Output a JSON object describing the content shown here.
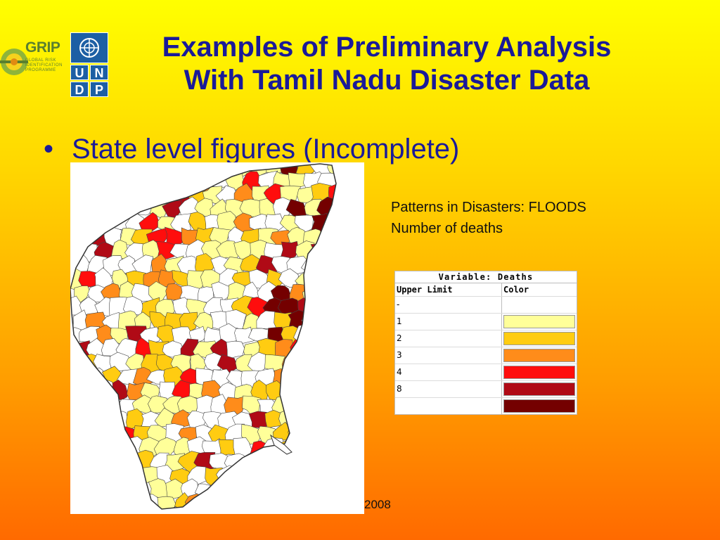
{
  "slide": {
    "title_line1": "Examples of Preliminary Analysis",
    "title_line2": "With Tamil Nadu Disaster Data",
    "bullet": "State level figures (Incomplete)",
    "bullet_marker": "•",
    "footer_year": "2008"
  },
  "logos": {
    "grip": {
      "word": "GRIP",
      "subtitle": "GLOBAL RISK IDENTIFICATION PROGRAMME"
    },
    "undp": {
      "letters": [
        "U",
        "N",
        "D",
        "P"
      ]
    }
  },
  "caption": {
    "line1": "Patterns in Disasters: FLOODS",
    "line2": "Number of deaths"
  },
  "legend": {
    "variable_label": "Variable:   Deaths",
    "col_upper": "Upper Limit",
    "col_color": "Color",
    "rows": [
      {
        "limit": "-",
        "color": null
      },
      {
        "limit": "1",
        "color": "#ffff99"
      },
      {
        "limit": "2",
        "color": "#ffcc11"
      },
      {
        "limit": "3",
        "color": "#ff8c1a"
      },
      {
        "limit": "4",
        "color": "#ff0d0d"
      },
      {
        "limit": "8",
        "color": "#b00a16"
      },
      {
        "limit": "",
        "color": "#740000"
      }
    ]
  },
  "map": {
    "colors": {
      "outline": "#444444",
      "background": "#ffffff",
      "levels": [
        "#ffffff",
        "#ffff99",
        "#ffcc11",
        "#ff8c1a",
        "#ff0d0d",
        "#b00a16",
        "#740000"
      ]
    }
  }
}
